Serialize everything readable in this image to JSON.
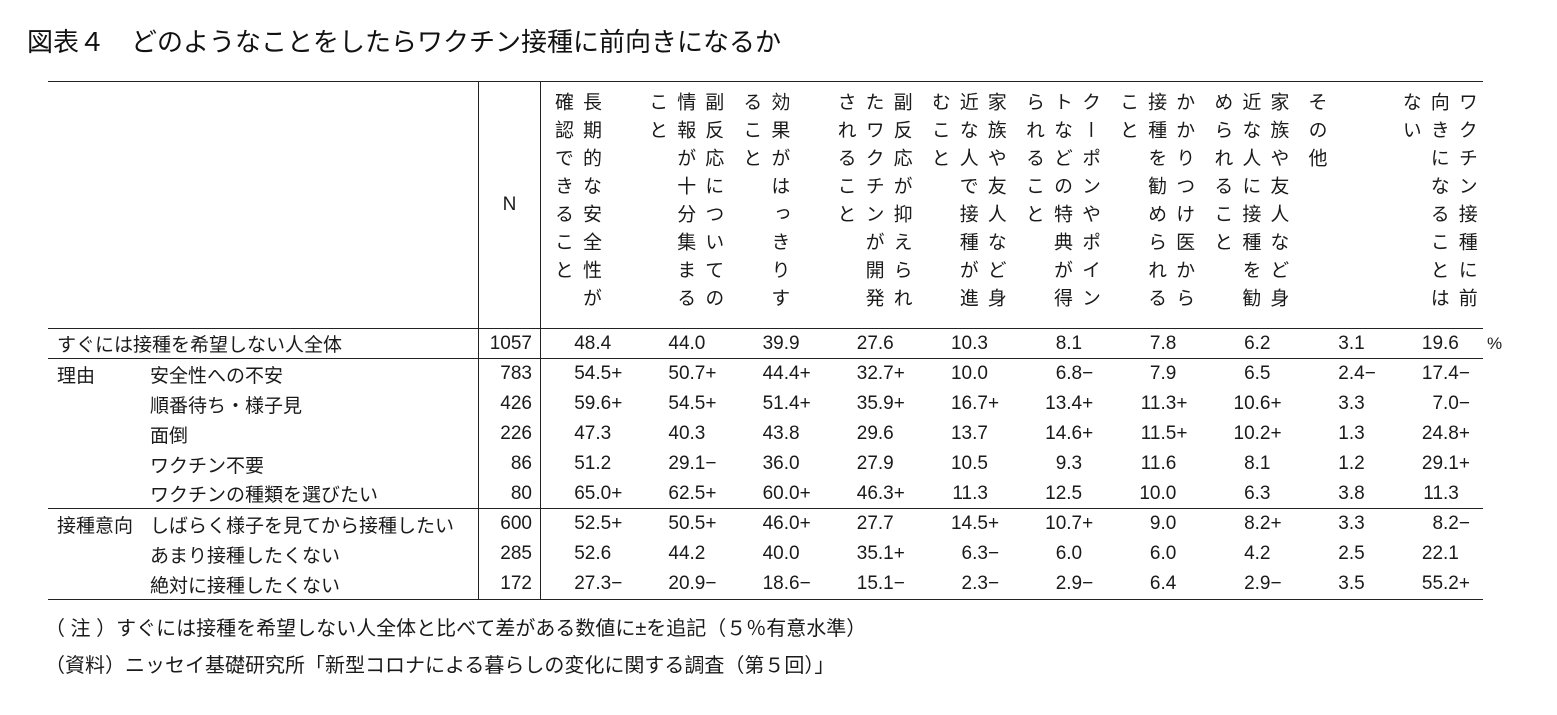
{
  "title": "図表４　どのようなことをしたらワクチン接種に前向きになるか",
  "unit": "%",
  "table": {
    "n_header": "N",
    "columns": [
      "長期的な安全性が\n確認できること",
      "副反応についての\n情報が十分集まる\nこと",
      "効果がはっきりす\nること",
      "副反応が抑えられ\nたワクチンが開発\nされること",
      "家族や友人など身\n近な人で接種が進\nむこと",
      "クーポンやポイン\nトなどの特典が得\nられること",
      "かかりつけ医から\n接種を勧められる\nこと",
      "家族や友人など身\n近な人に接種を勧\nめられること",
      "その他",
      "ワクチン接種に前\n向きになることは\nない"
    ],
    "rows": [
      {
        "group": "",
        "label": "すぐには接種を希望しない人全体",
        "indent": false,
        "n": "1057",
        "values": [
          "48.4",
          "44.0",
          "39.9",
          "27.6",
          "10.3",
          "8.1",
          "7.8",
          "6.2",
          "3.1",
          "19.6"
        ]
      },
      {
        "group": "理由",
        "label": "安全性への不安",
        "indent": true,
        "n": "783",
        "values": [
          "54.5+",
          "50.7+",
          "44.4+",
          "32.7+",
          "10.0",
          "6.8−",
          "7.9",
          "6.5",
          "2.4−",
          "17.4−"
        ]
      },
      {
        "group": "",
        "label": "順番待ち・様子見",
        "indent": true,
        "n": "426",
        "values": [
          "59.6+",
          "54.5+",
          "51.4+",
          "35.9+",
          "16.7+",
          "13.4+",
          "11.3+",
          "10.6+",
          "3.3",
          "7.0−"
        ]
      },
      {
        "group": "",
        "label": "面倒",
        "indent": true,
        "n": "226",
        "values": [
          "47.3",
          "40.3",
          "43.8",
          "29.6",
          "13.7",
          "14.6+",
          "11.5+",
          "10.2+",
          "1.3",
          "24.8+"
        ]
      },
      {
        "group": "",
        "label": "ワクチン不要",
        "indent": true,
        "n": "86",
        "values": [
          "51.2",
          "29.1−",
          "36.0",
          "27.9",
          "10.5",
          "9.3",
          "11.6",
          "8.1",
          "1.2",
          "29.1+"
        ]
      },
      {
        "group": "",
        "label": "ワクチンの種類を選びたい",
        "indent": true,
        "n": "80",
        "values": [
          "65.0+",
          "62.5+",
          "60.0+",
          "46.3+",
          "11.3",
          "12.5",
          "10.0",
          "6.3",
          "3.8",
          "11.3"
        ]
      },
      {
        "group": "接種意向",
        "label": "しばらく様子を見てから接種したい",
        "indent": true,
        "n": "600",
        "values": [
          "52.5+",
          "50.5+",
          "46.0+",
          "27.7",
          "14.5+",
          "10.7+",
          "9.0",
          "8.2+",
          "3.3",
          "8.2−"
        ]
      },
      {
        "group": "",
        "label": "あまり接種したくない",
        "indent": true,
        "n": "285",
        "values": [
          "52.6",
          "44.2",
          "40.0",
          "35.1+",
          "6.3−",
          "6.0",
          "6.0",
          "4.2",
          "2.5",
          "22.1"
        ]
      },
      {
        "group": "",
        "label": "絶対に接種したくない",
        "indent": true,
        "n": "172",
        "values": [
          "27.3−",
          "20.9−",
          "18.6−",
          "15.1−",
          "2.3−",
          "2.9−",
          "6.4",
          "2.9−",
          "3.5",
          "55.2+"
        ]
      }
    ]
  },
  "notes": [
    "（ 注 ）すぐには接種を希望しない人全体と比べて差がある数値に±を追記（５％有意水準）",
    "（資料）ニッセイ基礎研究所「新型コロナによる暮らしの変化に関する調査（第５回）」"
  ]
}
